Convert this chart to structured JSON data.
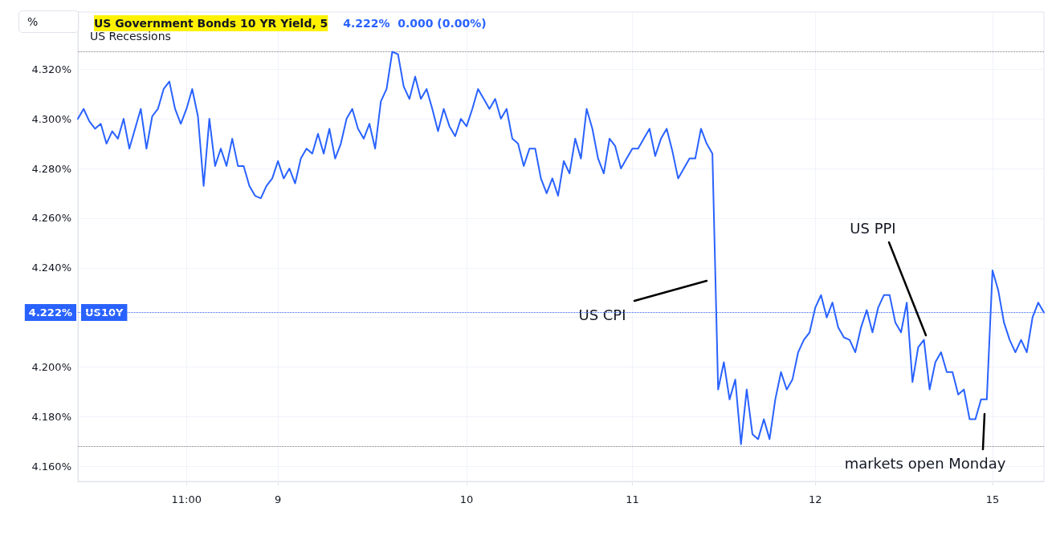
{
  "chart_data": {
    "type": "line",
    "title": "US Government Bonds 10 YR Yield, 5",
    "subtitle": "4.222%  0.000 (0.00%)",
    "annotations": [
      "%",
      "US Recessions",
      "US10Y",
      "US CPI",
      "US PPI",
      "markets open Monday"
    ],
    "categories": [
      null,
      null,
      null,
      null,
      null,
      null,
      null,
      null,
      null,
      null,
      null,
      null,
      null,
      null,
      null,
      null,
      null,
      null,
      null,
      "11:00",
      null,
      null,
      null,
      null,
      null,
      null,
      null,
      null,
      null,
      null,
      null,
      null,
      null,
      null,
      null,
      "9",
      null,
      null,
      null,
      null,
      null,
      null,
      null,
      null,
      null,
      null,
      null,
      null,
      null,
      null,
      null,
      null,
      null,
      null,
      null,
      null,
      null,
      null,
      null,
      null,
      null,
      null,
      null,
      null,
      null,
      null,
      null,
      null,
      "10",
      null,
      null,
      null,
      null,
      null,
      null,
      null,
      null,
      null,
      null,
      null,
      null,
      null,
      null,
      null,
      null,
      null,
      null,
      null,
      null,
      null,
      null,
      null,
      null,
      null,
      null,
      null,
      null,
      "11",
      null,
      null,
      null,
      null,
      null,
      null,
      null,
      null,
      null,
      null,
      null,
      null,
      null,
      null,
      null,
      null,
      null,
      null,
      null,
      null,
      null,
      null,
      null,
      null,
      null,
      null,
      null,
      null,
      null,
      null,
      null,
      "12",
      null,
      null,
      null,
      null,
      null,
      null,
      null,
      null,
      null,
      null,
      null,
      null,
      null,
      null,
      null,
      null,
      null,
      null,
      null,
      null,
      null,
      null,
      null,
      null,
      null,
      null,
      null,
      null,
      null,
      null,
      "15",
      null,
      null,
      null,
      null,
      null,
      null,
      null,
      null,
      null
    ],
    "ylim": [
      4.154,
      4.343
    ],
    "yticks": [
      {
        "value": 4.16,
        "label": "4.160%"
      },
      {
        "value": 4.18,
        "label": "4.180%"
      },
      {
        "value": 4.2,
        "label": "4.200%"
      },
      {
        "value": 4.22,
        "label": null
      },
      {
        "value": 4.24,
        "label": "4.240%"
      },
      {
        "value": 4.26,
        "label": "4.260%"
      },
      {
        "value": 4.28,
        "label": "4.280%"
      },
      {
        "value": 4.3,
        "label": "4.300%"
      },
      {
        "value": 4.32,
        "label": "4.320%"
      }
    ],
    "grid": true,
    "marker": "none",
    "line_style": "solid",
    "ref_lines": [
      {
        "axis": "y",
        "value": 4.327,
        "label": null,
        "color": "#787b86",
        "line_style": "dotted"
      },
      {
        "axis": "y",
        "value": 4.168,
        "label": null,
        "color": "#787b86",
        "line_style": "dotted"
      },
      {
        "axis": "y",
        "value": 4.222,
        "label": "4.222%",
        "color": "#2962ff",
        "line_style": "dotted"
      }
    ],
    "series": [
      {
        "color": "#2962ff",
        "values": [
          4.3,
          4.304,
          4.299,
          4.296,
          4.298,
          4.29,
          4.295,
          4.292,
          4.3,
          4.288,
          4.296,
          4.304,
          4.288,
          4.301,
          4.304,
          4.312,
          4.315,
          4.304,
          4.298,
          4.304,
          4.312,
          4.301,
          4.273,
          4.3,
          4.281,
          4.288,
          4.281,
          4.292,
          4.281,
          4.281,
          4.273,
          4.269,
          4.268,
          4.273,
          4.276,
          4.283,
          4.276,
          4.28,
          4.274,
          4.284,
          4.288,
          4.286,
          4.294,
          4.286,
          4.296,
          4.284,
          4.29,
          4.3,
          4.304,
          4.296,
          4.292,
          4.298,
          4.288,
          4.307,
          4.312,
          4.327,
          4.326,
          4.313,
          4.308,
          4.317,
          4.308,
          4.312,
          4.304,
          4.295,
          4.304,
          4.297,
          4.293,
          4.3,
          4.297,
          4.304,
          4.312,
          4.308,
          4.304,
          4.308,
          4.3,
          4.304,
          4.292,
          4.29,
          4.281,
          4.288,
          4.288,
          4.276,
          4.27,
          4.276,
          4.269,
          4.283,
          4.278,
          4.292,
          4.284,
          4.304,
          4.296,
          4.284,
          4.278,
          4.292,
          4.289,
          4.28,
          4.284,
          4.288,
          4.288,
          4.292,
          4.296,
          4.285,
          4.292,
          4.296,
          4.287,
          4.276,
          4.28,
          4.284,
          4.284,
          4.296,
          4.29,
          4.286,
          4.191,
          4.202,
          4.187,
          4.195,
          4.169,
          4.191,
          4.173,
          4.171,
          4.179,
          4.171,
          4.187,
          4.198,
          4.191,
          4.195,
          4.206,
          4.211,
          4.214,
          4.224,
          4.229,
          4.22,
          4.226,
          4.216,
          4.212,
          4.211,
          4.206,
          4.216,
          4.223,
          4.214,
          4.224,
          4.229,
          4.229,
          4.218,
          4.214,
          4.226,
          4.194,
          4.208,
          4.211,
          4.191,
          4.202,
          4.206,
          4.198,
          4.198,
          4.189,
          4.191,
          4.179,
          4.179,
          4.187,
          4.187,
          4.239,
          4.231,
          4.218,
          4.211,
          4.206,
          4.211,
          4.206,
          4.22,
          4.226,
          4.222
        ]
      }
    ]
  }
}
